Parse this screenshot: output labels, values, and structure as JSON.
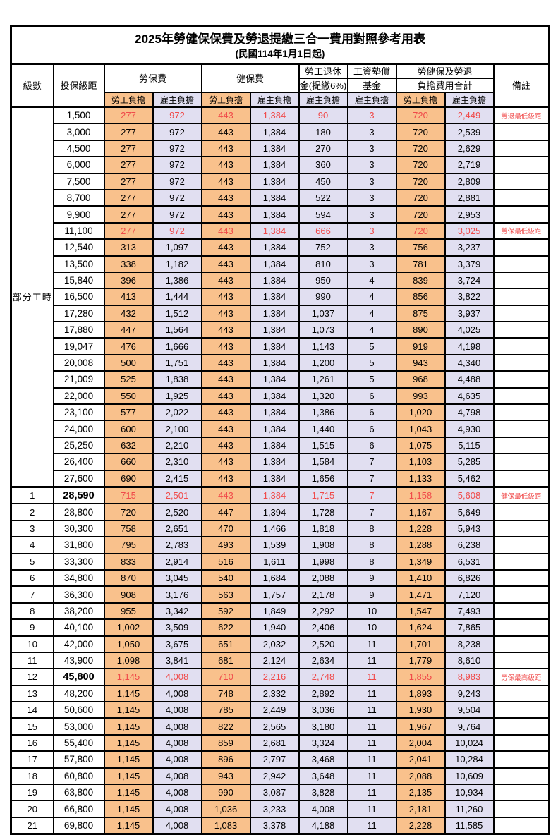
{
  "title": {
    "line1": "2025年勞健保保費及勞退提繳三合一費用對照參考用表",
    "line2": "(民國114年1月1日起)"
  },
  "colors": {
    "employee_bg": "#F9C18C",
    "employer_bg": "#E1DFF1",
    "highlight_text": "#F04A4A",
    "border": "#000000"
  },
  "header": {
    "level": "級數",
    "bracket": "投保級距",
    "labor_fee": "勞保費",
    "health_fee": "健保費",
    "pension_line1": "勞工退休",
    "pension_line2": "金(提繳6%)",
    "wage_fund_line1": "工資墊償",
    "wage_fund_line2": "基金",
    "total_line1": "勞健保及勞退",
    "total_line2": "負擔費用合計",
    "remark": "備註",
    "employee": "勞工負擔",
    "employer": "雇主負擔"
  },
  "group": {
    "label": "部分工時",
    "span": 23
  },
  "rows": [
    {
      "level": "",
      "bracket": "1,500",
      "v": [
        "277",
        "972",
        "443",
        "1,384",
        "90",
        "3",
        "720",
        "2,449"
      ],
      "remark": "勞退最低級距",
      "red": true
    },
    {
      "level": "",
      "bracket": "3,000",
      "v": [
        "277",
        "972",
        "443",
        "1,384",
        "180",
        "3",
        "720",
        "2,539"
      ],
      "remark": ""
    },
    {
      "level": "",
      "bracket": "4,500",
      "v": [
        "277",
        "972",
        "443",
        "1,384",
        "270",
        "3",
        "720",
        "2,629"
      ],
      "remark": ""
    },
    {
      "level": "",
      "bracket": "6,000",
      "v": [
        "277",
        "972",
        "443",
        "1,384",
        "360",
        "3",
        "720",
        "2,719"
      ],
      "remark": ""
    },
    {
      "level": "",
      "bracket": "7,500",
      "v": [
        "277",
        "972",
        "443",
        "1,384",
        "450",
        "3",
        "720",
        "2,809"
      ],
      "remark": ""
    },
    {
      "level": "",
      "bracket": "8,700",
      "v": [
        "277",
        "972",
        "443",
        "1,384",
        "522",
        "3",
        "720",
        "2,881"
      ],
      "remark": ""
    },
    {
      "level": "",
      "bracket": "9,900",
      "v": [
        "277",
        "972",
        "443",
        "1,384",
        "594",
        "3",
        "720",
        "2,953"
      ],
      "remark": ""
    },
    {
      "level": "",
      "bracket": "11,100",
      "v": [
        "277",
        "972",
        "443",
        "1,384",
        "666",
        "3",
        "720",
        "3,025"
      ],
      "remark": "勞保最低級距",
      "red": true
    },
    {
      "level": "",
      "bracket": "12,540",
      "v": [
        "313",
        "1,097",
        "443",
        "1,384",
        "752",
        "3",
        "756",
        "3,237"
      ],
      "remark": ""
    },
    {
      "level": "",
      "bracket": "13,500",
      "v": [
        "338",
        "1,182",
        "443",
        "1,384",
        "810",
        "3",
        "781",
        "3,379"
      ],
      "remark": ""
    },
    {
      "level": "",
      "bracket": "15,840",
      "v": [
        "396",
        "1,386",
        "443",
        "1,384",
        "950",
        "4",
        "839",
        "3,724"
      ],
      "remark": ""
    },
    {
      "level": "",
      "bracket": "16,500",
      "v": [
        "413",
        "1,444",
        "443",
        "1,384",
        "990",
        "4",
        "856",
        "3,822"
      ],
      "remark": ""
    },
    {
      "level": "",
      "bracket": "17,280",
      "v": [
        "432",
        "1,512",
        "443",
        "1,384",
        "1,037",
        "4",
        "875",
        "3,937"
      ],
      "remark": ""
    },
    {
      "level": "",
      "bracket": "17,880",
      "v": [
        "447",
        "1,564",
        "443",
        "1,384",
        "1,073",
        "4",
        "890",
        "4,025"
      ],
      "remark": ""
    },
    {
      "level": "",
      "bracket": "19,047",
      "v": [
        "476",
        "1,666",
        "443",
        "1,384",
        "1,143",
        "5",
        "919",
        "4,198"
      ],
      "remark": ""
    },
    {
      "level": "",
      "bracket": "20,008",
      "v": [
        "500",
        "1,751",
        "443",
        "1,384",
        "1,200",
        "5",
        "943",
        "4,340"
      ],
      "remark": ""
    },
    {
      "level": "",
      "bracket": "21,009",
      "v": [
        "525",
        "1,838",
        "443",
        "1,384",
        "1,261",
        "5",
        "968",
        "4,488"
      ],
      "remark": ""
    },
    {
      "level": "",
      "bracket": "22,000",
      "v": [
        "550",
        "1,925",
        "443",
        "1,384",
        "1,320",
        "6",
        "993",
        "4,635"
      ],
      "remark": ""
    },
    {
      "level": "",
      "bracket": "23,100",
      "v": [
        "577",
        "2,022",
        "443",
        "1,384",
        "1,386",
        "6",
        "1,020",
        "4,798"
      ],
      "remark": ""
    },
    {
      "level": "",
      "bracket": "24,000",
      "v": [
        "600",
        "2,100",
        "443",
        "1,384",
        "1,440",
        "6",
        "1,043",
        "4,930"
      ],
      "remark": ""
    },
    {
      "level": "",
      "bracket": "25,250",
      "v": [
        "632",
        "2,210",
        "443",
        "1,384",
        "1,515",
        "6",
        "1,075",
        "5,115"
      ],
      "remark": ""
    },
    {
      "level": "",
      "bracket": "26,400",
      "v": [
        "660",
        "2,310",
        "443",
        "1,384",
        "1,584",
        "7",
        "1,103",
        "5,285"
      ],
      "remark": ""
    },
    {
      "level": "",
      "bracket": "27,600",
      "v": [
        "690",
        "2,415",
        "443",
        "1,384",
        "1,656",
        "7",
        "1,133",
        "5,462"
      ],
      "remark": ""
    },
    {
      "level": "1",
      "bracket": "28,590",
      "v": [
        "715",
        "2,501",
        "443",
        "1,384",
        "1,715",
        "7",
        "1,158",
        "5,608"
      ],
      "remark": "健保最低級距",
      "red": true,
      "emph": true,
      "sep": true
    },
    {
      "level": "2",
      "bracket": "28,800",
      "v": [
        "720",
        "2,520",
        "447",
        "1,394",
        "1,728",
        "7",
        "1,167",
        "5,649"
      ],
      "remark": ""
    },
    {
      "level": "3",
      "bracket": "30,300",
      "v": [
        "758",
        "2,651",
        "470",
        "1,466",
        "1,818",
        "8",
        "1,228",
        "5,943"
      ],
      "remark": ""
    },
    {
      "level": "4",
      "bracket": "31,800",
      "v": [
        "795",
        "2,783",
        "493",
        "1,539",
        "1,908",
        "8",
        "1,288",
        "6,238"
      ],
      "remark": ""
    },
    {
      "level": "5",
      "bracket": "33,300",
      "v": [
        "833",
        "2,914",
        "516",
        "1,611",
        "1,998",
        "8",
        "1,349",
        "6,531"
      ],
      "remark": ""
    },
    {
      "level": "6",
      "bracket": "34,800",
      "v": [
        "870",
        "3,045",
        "540",
        "1,684",
        "2,088",
        "9",
        "1,410",
        "6,826"
      ],
      "remark": ""
    },
    {
      "level": "7",
      "bracket": "36,300",
      "v": [
        "908",
        "3,176",
        "563",
        "1,757",
        "2,178",
        "9",
        "1,471",
        "7,120"
      ],
      "remark": ""
    },
    {
      "level": "8",
      "bracket": "38,200",
      "v": [
        "955",
        "3,342",
        "592",
        "1,849",
        "2,292",
        "10",
        "1,547",
        "7,493"
      ],
      "remark": ""
    },
    {
      "level": "9",
      "bracket": "40,100",
      "v": [
        "1,002",
        "3,509",
        "622",
        "1,940",
        "2,406",
        "10",
        "1,624",
        "7,865"
      ],
      "remark": ""
    },
    {
      "level": "10",
      "bracket": "42,000",
      "v": [
        "1,050",
        "3,675",
        "651",
        "2,032",
        "2,520",
        "11",
        "1,701",
        "8,238"
      ],
      "remark": ""
    },
    {
      "level": "11",
      "bracket": "43,900",
      "v": [
        "1,098",
        "3,841",
        "681",
        "2,124",
        "2,634",
        "11",
        "1,779",
        "8,610"
      ],
      "remark": ""
    },
    {
      "level": "12",
      "bracket": "45,800",
      "v": [
        "1,145",
        "4,008",
        "710",
        "2,216",
        "2,748",
        "11",
        "1,855",
        "8,983"
      ],
      "remark": "勞保最高級距",
      "red": true,
      "emph": true
    },
    {
      "level": "13",
      "bracket": "48,200",
      "v": [
        "1,145",
        "4,008",
        "748",
        "2,332",
        "2,892",
        "11",
        "1,893",
        "9,243"
      ],
      "remark": ""
    },
    {
      "level": "14",
      "bracket": "50,600",
      "v": [
        "1,145",
        "4,008",
        "785",
        "2,449",
        "3,036",
        "11",
        "1,930",
        "9,504"
      ],
      "remark": ""
    },
    {
      "level": "15",
      "bracket": "53,000",
      "v": [
        "1,145",
        "4,008",
        "822",
        "2,565",
        "3,180",
        "11",
        "1,967",
        "9,764"
      ],
      "remark": ""
    },
    {
      "level": "16",
      "bracket": "55,400",
      "v": [
        "1,145",
        "4,008",
        "859",
        "2,681",
        "3,324",
        "11",
        "2,004",
        "10,024"
      ],
      "remark": ""
    },
    {
      "level": "17",
      "bracket": "57,800",
      "v": [
        "1,145",
        "4,008",
        "896",
        "2,797",
        "3,468",
        "11",
        "2,041",
        "10,284"
      ],
      "remark": ""
    },
    {
      "level": "18",
      "bracket": "60,800",
      "v": [
        "1,145",
        "4,008",
        "943",
        "2,942",
        "3,648",
        "11",
        "2,088",
        "10,609"
      ],
      "remark": ""
    },
    {
      "level": "19",
      "bracket": "63,800",
      "v": [
        "1,145",
        "4,008",
        "990",
        "3,087",
        "3,828",
        "11",
        "2,135",
        "10,934"
      ],
      "remark": ""
    },
    {
      "level": "20",
      "bracket": "66,800",
      "v": [
        "1,145",
        "4,008",
        "1,036",
        "3,233",
        "4,008",
        "11",
        "2,181",
        "11,260"
      ],
      "remark": ""
    },
    {
      "level": "21",
      "bracket": "69,800",
      "v": [
        "1,145",
        "4,008",
        "1,083",
        "3,378",
        "4,188",
        "11",
        "2,228",
        "11,585"
      ],
      "remark": ""
    }
  ]
}
